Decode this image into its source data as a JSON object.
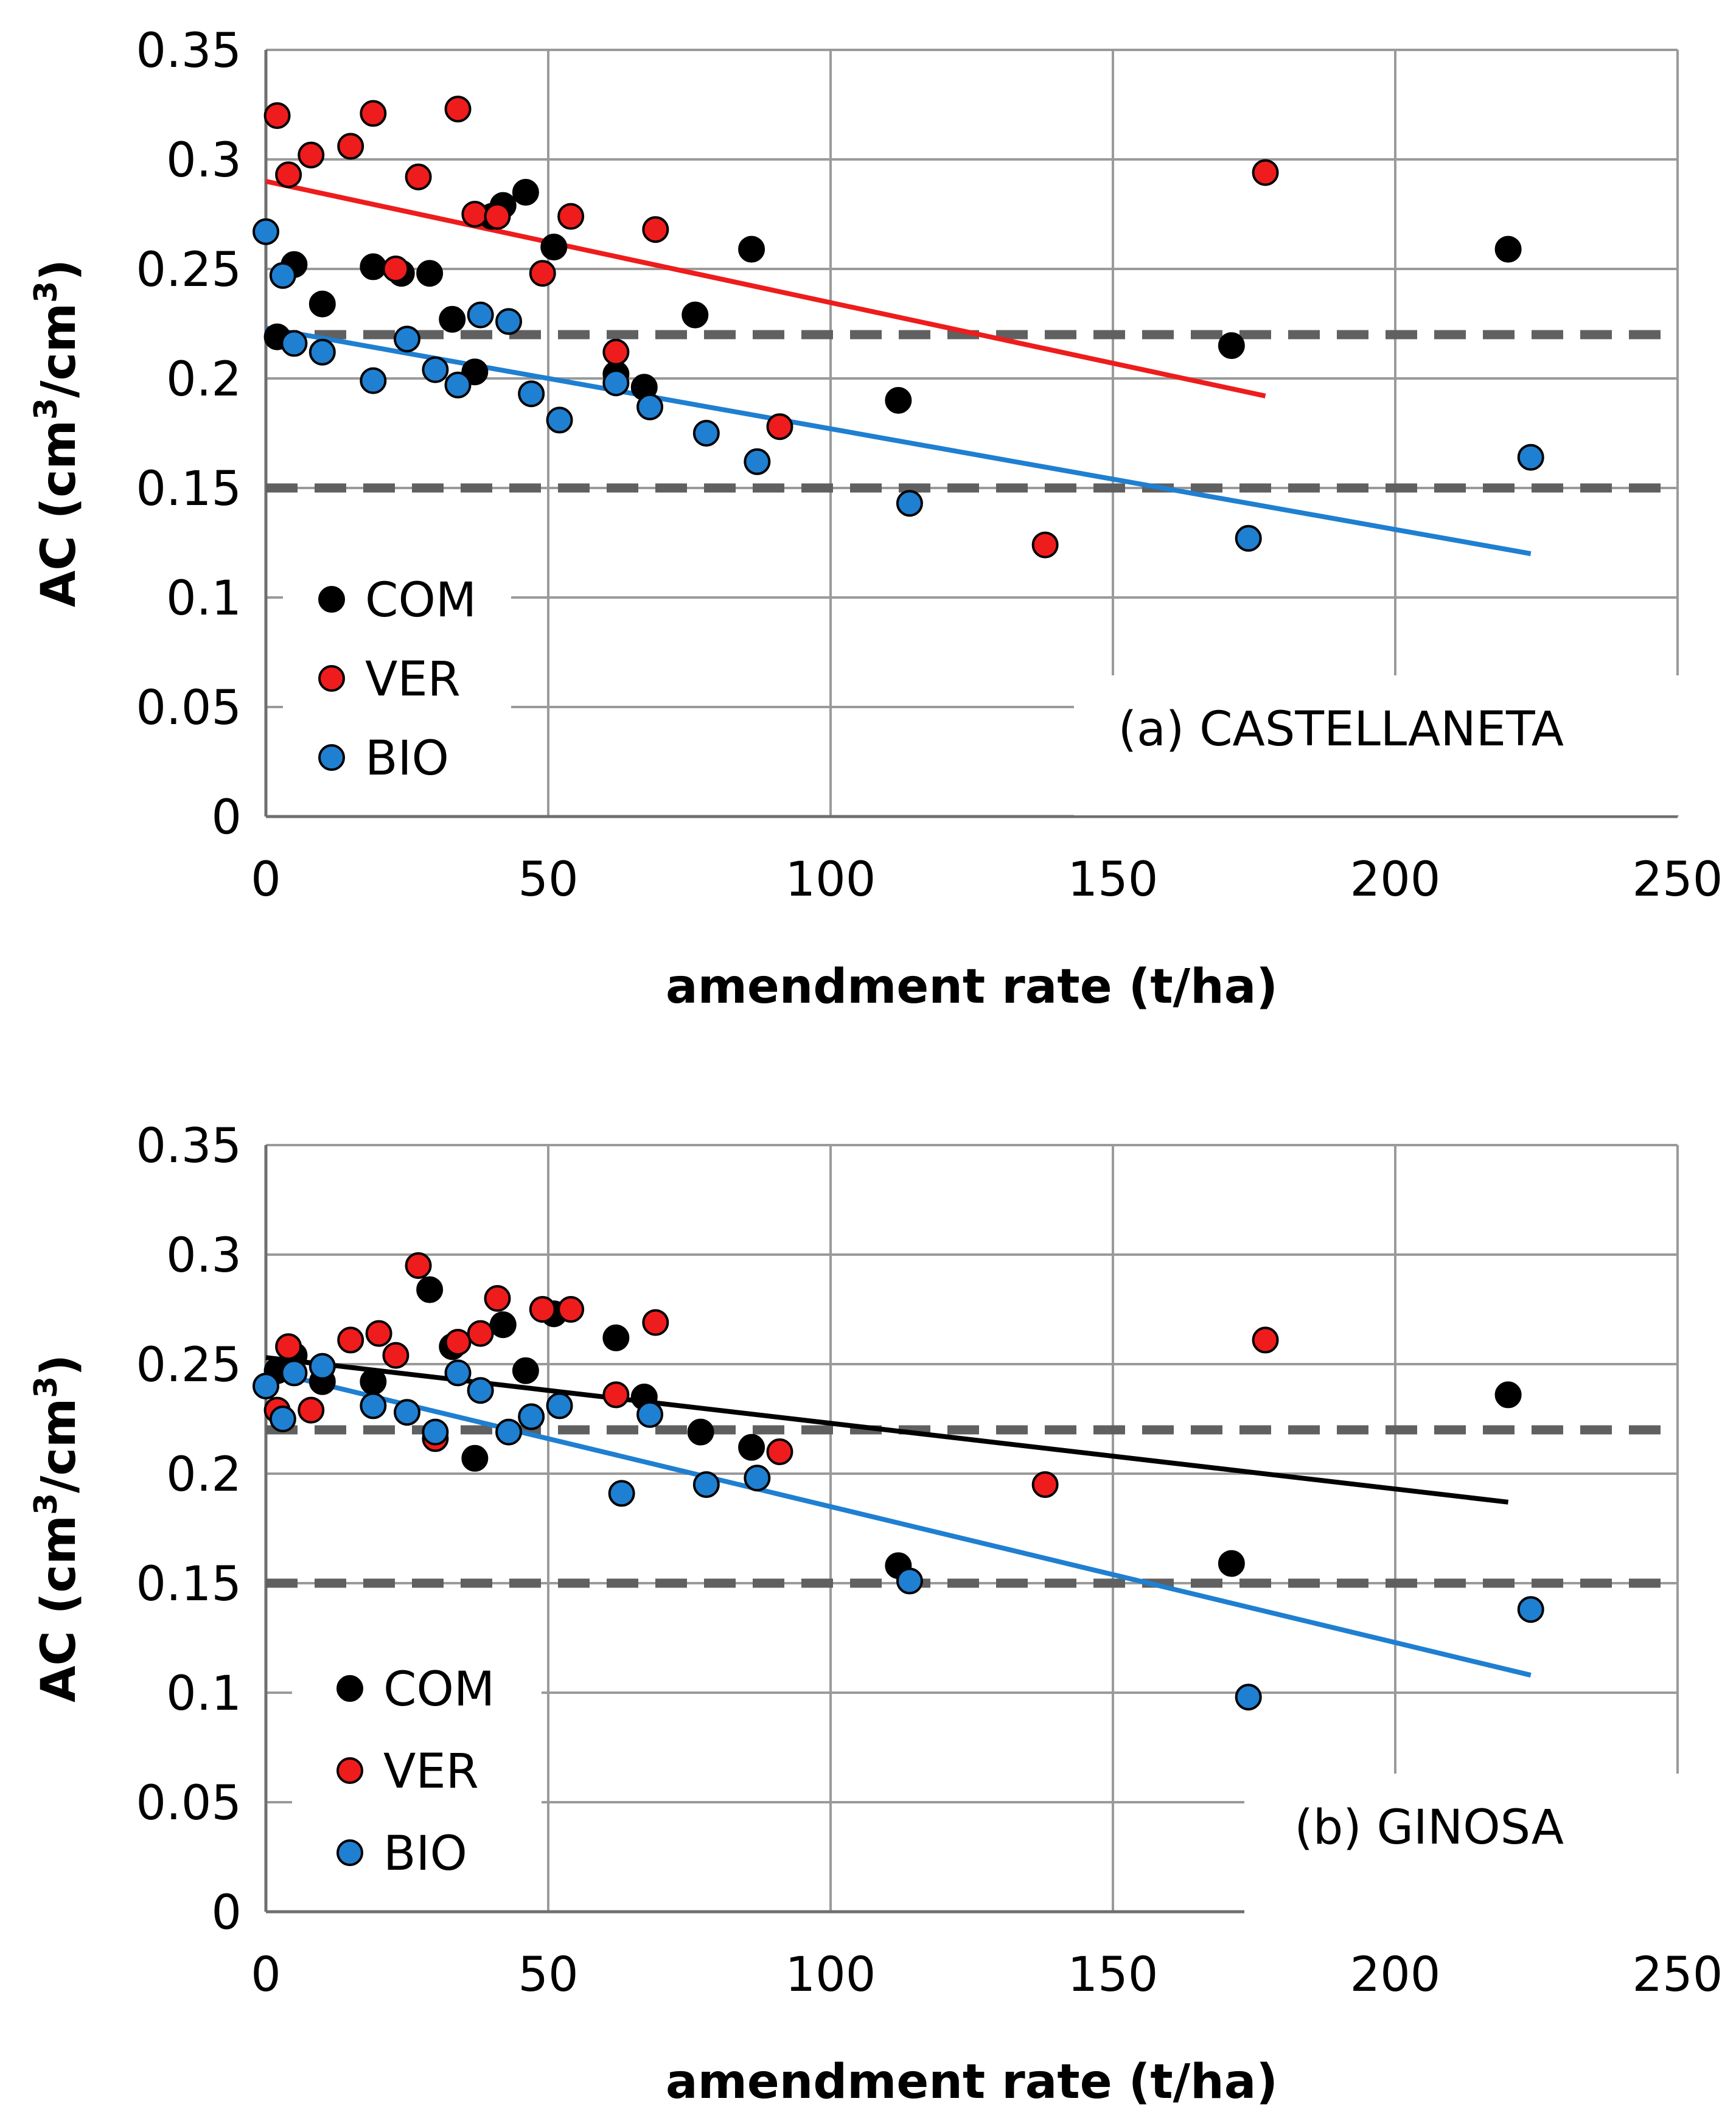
{
  "colors": {
    "COM": "#000000",
    "VER": "#ee1c1c",
    "BIO": "#1f7fd1",
    "grid": "#9a9a9a",
    "ref": "#606060"
  },
  "chart_data": [
    {
      "type": "scatter",
      "annotation": "(a) CASTELLANETA",
      "xlabel": "amendment rate (t/ha)",
      "ylabel": {
        "prefix": "AC (cm",
        "sup1": "3",
        "mid": "/cm",
        "sup2": "3",
        "suffix": ")"
      },
      "xlim": [
        0,
        250
      ],
      "ylim": [
        0,
        0.35
      ],
      "xticks": [
        "0",
        "50",
        "100",
        "150",
        "200",
        "250"
      ],
      "yticks": [
        "0",
        "0.05",
        "0.1",
        "0.15",
        "0.2",
        "0.25",
        "0.3",
        "0.35"
      ],
      "grid": true,
      "legend_position": "bottom-left",
      "reference_lines": [
        0.22,
        0.15
      ],
      "series": [
        {
          "name": "COM",
          "color": "#000000",
          "x": [
            2,
            5,
            10,
            19,
            24,
            29,
            33,
            37,
            40,
            42,
            46,
            51,
            62,
            67,
            76,
            86,
            112,
            171,
            220
          ],
          "y": [
            0.219,
            0.252,
            0.234,
            0.251,
            0.248,
            0.248,
            0.227,
            0.203,
            0.274,
            0.279,
            0.285,
            0.26,
            0.202,
            0.196,
            0.229,
            0.259,
            0.19,
            0.215,
            0.259
          ],
          "trend": null
        },
        {
          "name": "VER",
          "color": "#ee1c1c",
          "x": [
            2,
            4,
            8,
            15,
            19,
            23,
            27,
            34,
            37,
            41,
            49,
            54,
            62,
            69,
            91,
            138,
            177
          ],
          "y": [
            0.32,
            0.293,
            0.302,
            0.306,
            0.321,
            0.25,
            0.292,
            0.323,
            0.275,
            0.274,
            0.248,
            0.274,
            0.212,
            0.268,
            0.178,
            0.124,
            0.294
          ],
          "trend": {
            "x": [
              0,
              177
            ],
            "y": [
              0.29,
              0.192
            ]
          }
        },
        {
          "name": "BIO",
          "color": "#1f7fd1",
          "x": [
            0,
            3,
            5,
            10,
            19,
            25,
            30,
            34,
            38,
            43,
            47,
            52,
            62,
            68,
            78,
            87,
            114,
            174,
            224
          ],
          "y": [
            0.267,
            0.247,
            0.216,
            0.212,
            0.199,
            0.218,
            0.204,
            0.197,
            0.229,
            0.226,
            0.193,
            0.181,
            0.198,
            0.187,
            0.175,
            0.162,
            0.143,
            0.127,
            0.164
          ],
          "trend": {
            "x": [
              0,
              224
            ],
            "y": [
              0.223,
              0.12
            ]
          }
        }
      ]
    },
    {
      "type": "scatter",
      "annotation": "(b) GINOSA",
      "xlabel": "amendment rate (t/ha)",
      "ylabel": {
        "prefix": "AC (cm",
        "sup1": "3",
        "mid": "/cm",
        "sup2": "3",
        "suffix": ")"
      },
      "xlim": [
        0,
        250
      ],
      "ylim": [
        0,
        0.35
      ],
      "xticks": [
        "0",
        "50",
        "100",
        "150",
        "200",
        "250"
      ],
      "yticks": [
        "0",
        "0.05",
        "0.1",
        "0.15",
        "0.2",
        "0.25",
        "0.3",
        "0.35"
      ],
      "grid": true,
      "legend_position": "bottom-left",
      "reference_lines": [
        0.22,
        0.15
      ],
      "series": [
        {
          "name": "COM",
          "color": "#000000",
          "x": [
            2,
            5,
            10,
            19,
            29,
            33,
            37,
            42,
            46,
            51,
            62,
            67,
            77,
            86,
            112,
            171,
            220
          ],
          "y": [
            0.247,
            0.254,
            0.242,
            0.242,
            0.284,
            0.258,
            0.207,
            0.268,
            0.247,
            0.273,
            0.262,
            0.235,
            0.219,
            0.212,
            0.158,
            0.159,
            0.236
          ],
          "trend": {
            "x": [
              0,
              220
            ],
            "y": [
              0.253,
              0.187
            ]
          }
        },
        {
          "name": "VER",
          "color": "#ee1c1c",
          "x": [
            2,
            4,
            8,
            15,
            20,
            23,
            27,
            30,
            34,
            38,
            41,
            49,
            54,
            62,
            69,
            91,
            138,
            177
          ],
          "y": [
            0.229,
            0.258,
            0.229,
            0.261,
            0.264,
            0.254,
            0.295,
            0.216,
            0.26,
            0.264,
            0.28,
            0.275,
            0.275,
            0.236,
            0.269,
            0.21,
            0.195,
            0.261
          ],
          "trend": null
        },
        {
          "name": "BIO",
          "color": "#1f7fd1",
          "x": [
            0,
            3,
            5,
            10,
            19,
            25,
            30,
            34,
            38,
            43,
            47,
            52,
            63,
            68,
            78,
            87,
            114,
            174,
            224
          ],
          "y": [
            0.24,
            0.225,
            0.246,
            0.249,
            0.231,
            0.228,
            0.219,
            0.246,
            0.238,
            0.219,
            0.226,
            0.231,
            0.191,
            0.227,
            0.195,
            0.198,
            0.151,
            0.098,
            0.138
          ],
          "trend": {
            "x": [
              0,
              224
            ],
            "y": [
              0.247,
              0.108
            ]
          }
        }
      ]
    }
  ]
}
